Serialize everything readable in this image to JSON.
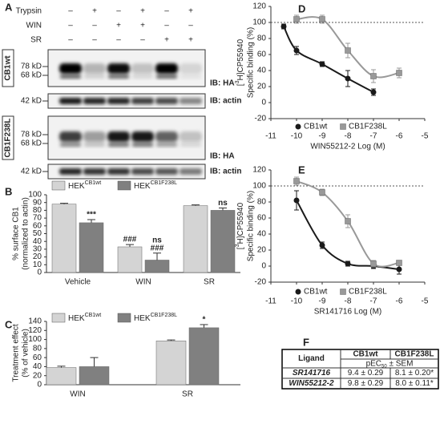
{
  "blot": {
    "panel_label": "A",
    "rows": [
      {
        "label": "Trypsin",
        "signs": [
          "–",
          "+",
          "–",
          "+",
          "–",
          "+"
        ]
      },
      {
        "label": "WIN",
        "signs": [
          "–",
          "–",
          "+",
          "+",
          "–",
          "–"
        ]
      },
      {
        "label": "SR",
        "signs": [
          "–",
          "–",
          "–",
          "–",
          "+",
          "+"
        ]
      }
    ],
    "panels": [
      {
        "name": "CB1wt",
        "markers": [
          "78 kD",
          "68 kD"
        ],
        "ib": "IB: HA",
        "actin_marker": "42 kD",
        "actin_ib": "IB: actin"
      },
      {
        "name": "CB1F238L",
        "markers": [
          "78 kD",
          "68 kD"
        ],
        "ib": "IB: HA",
        "actin_marker": "42 kD",
        "actin_ib": "IB: actin"
      }
    ]
  },
  "chart_data": [
    {
      "type": "bar",
      "panel_label": "B",
      "ylabel": [
        "% surface CB1",
        "(normalized to actin)"
      ],
      "categories": [
        "Vehicle",
        "WIN",
        "SR"
      ],
      "series": [
        {
          "name": "HEK",
          "name_sup": "CB1wt",
          "color": "#d4d4d4",
          "values": [
            88,
            33,
            86
          ],
          "errors": [
            1,
            3,
            1
          ],
          "annotations": [
            null,
            [
              "###"
            ],
            null
          ]
        },
        {
          "name": "HEK",
          "name_sup": "CB1F238L",
          "color": "#808080",
          "values": [
            64,
            16,
            80
          ],
          "errors": [
            4,
            9,
            3
          ],
          "annotations": [
            [
              "***"
            ],
            [
              "###",
              "ns"
            ],
            [
              "ns"
            ]
          ]
        }
      ],
      "ylim": [
        0,
        100
      ],
      "yticks": [
        0,
        10,
        20,
        30,
        40,
        50,
        60,
        70,
        80,
        90,
        100
      ]
    },
    {
      "type": "bar",
      "panel_label": "C",
      "ylabel": [
        "Treatment effect",
        "(% of vehicle)"
      ],
      "categories": [
        "WIN",
        "SR"
      ],
      "series": [
        {
          "name": "HEK",
          "name_sup": "CB1wt",
          "color": "#d4d4d4",
          "values": [
            38,
            97
          ],
          "errors": [
            3,
            2
          ],
          "annotations": [
            null,
            null
          ]
        },
        {
          "name": "HEK",
          "name_sup": "CB1F238L",
          "color": "#808080",
          "values": [
            40,
            126
          ],
          "errors": [
            20,
            7
          ],
          "annotations": [
            null,
            [
              "*"
            ]
          ]
        }
      ],
      "ylim": [
        0,
        140
      ],
      "yticks": [
        0,
        20,
        40,
        60,
        80,
        100,
        120,
        140
      ]
    },
    {
      "type": "line",
      "panel_label": "D",
      "xlabel": "WIN55212-2 Log (M)",
      "ylabel": {
        "pre": "[",
        "sup": "3",
        "post": "H]CP55940",
        "line2": "Specific binding (%)"
      },
      "reference_line": 100,
      "series": [
        {
          "name": "CB1wt",
          "color": "#1a1a1a",
          "marker": "circle",
          "x": [
            -10.5,
            -10,
            -9,
            -8,
            -7
          ],
          "values": [
            95,
            65,
            48,
            30,
            13
          ],
          "errors": [
            3,
            5,
            3,
            10,
            4
          ]
        },
        {
          "name": "CB1F238L",
          "color": "#999999",
          "marker": "square",
          "x": [
            -10,
            -9,
            -8,
            -7,
            -6
          ],
          "values": [
            104,
            104,
            65,
            33,
            37
          ],
          "errors": [
            5,
            5,
            9,
            8,
            6
          ]
        }
      ],
      "xlim": [
        -11,
        -5
      ],
      "xticks": [
        -11,
        -10,
        -9,
        -8,
        -7,
        -6,
        -5
      ],
      "ylim": [
        -20,
        120
      ],
      "yticks": [
        -20,
        0,
        20,
        40,
        60,
        80,
        100,
        120
      ]
    },
    {
      "type": "line",
      "panel_label": "E",
      "xlabel": "SR141716 Log (M)",
      "ylabel": {
        "pre": "[",
        "sup": "3",
        "post": "H]CP55940",
        "line2": "Specific binding (%)"
      },
      "reference_line": 100,
      "series": [
        {
          "name": "CB1wt",
          "color": "#1a1a1a",
          "marker": "circle",
          "x": [
            -10,
            -9,
            -8,
            -7,
            -6
          ],
          "values": [
            82,
            26,
            3,
            0,
            -4
          ],
          "errors": [
            12,
            4,
            3,
            3,
            6
          ]
        },
        {
          "name": "CB1F238L",
          "color": "#999999",
          "marker": "square",
          "x": [
            -10,
            -9,
            -8,
            -7,
            -6
          ],
          "values": [
            106,
            92,
            56,
            3,
            4
          ],
          "errors": [
            5,
            4,
            8,
            4,
            3
          ]
        }
      ],
      "xlim": [
        -11,
        -5
      ],
      "xticks": [
        -11,
        -10,
        -9,
        -8,
        -7,
        -6,
        -5
      ],
      "ylim": [
        -20,
        120
      ],
      "yticks": [
        -20,
        0,
        20,
        40,
        60,
        80,
        100,
        120
      ]
    }
  ],
  "table": {
    "panel_label": "F",
    "header": [
      "Ligand",
      "CB1wt",
      "CB1F238L"
    ],
    "subheader": {
      "pre": "pEC",
      "sub": "50",
      "post": " ± SEM"
    },
    "rows": [
      [
        "SR141716",
        "9.4 ± 0.29",
        "8.1 ± 0.20*"
      ],
      [
        "WIN55212-2",
        "9.8 ± 0.29",
        "8.0 ± 0.11*"
      ]
    ]
  }
}
